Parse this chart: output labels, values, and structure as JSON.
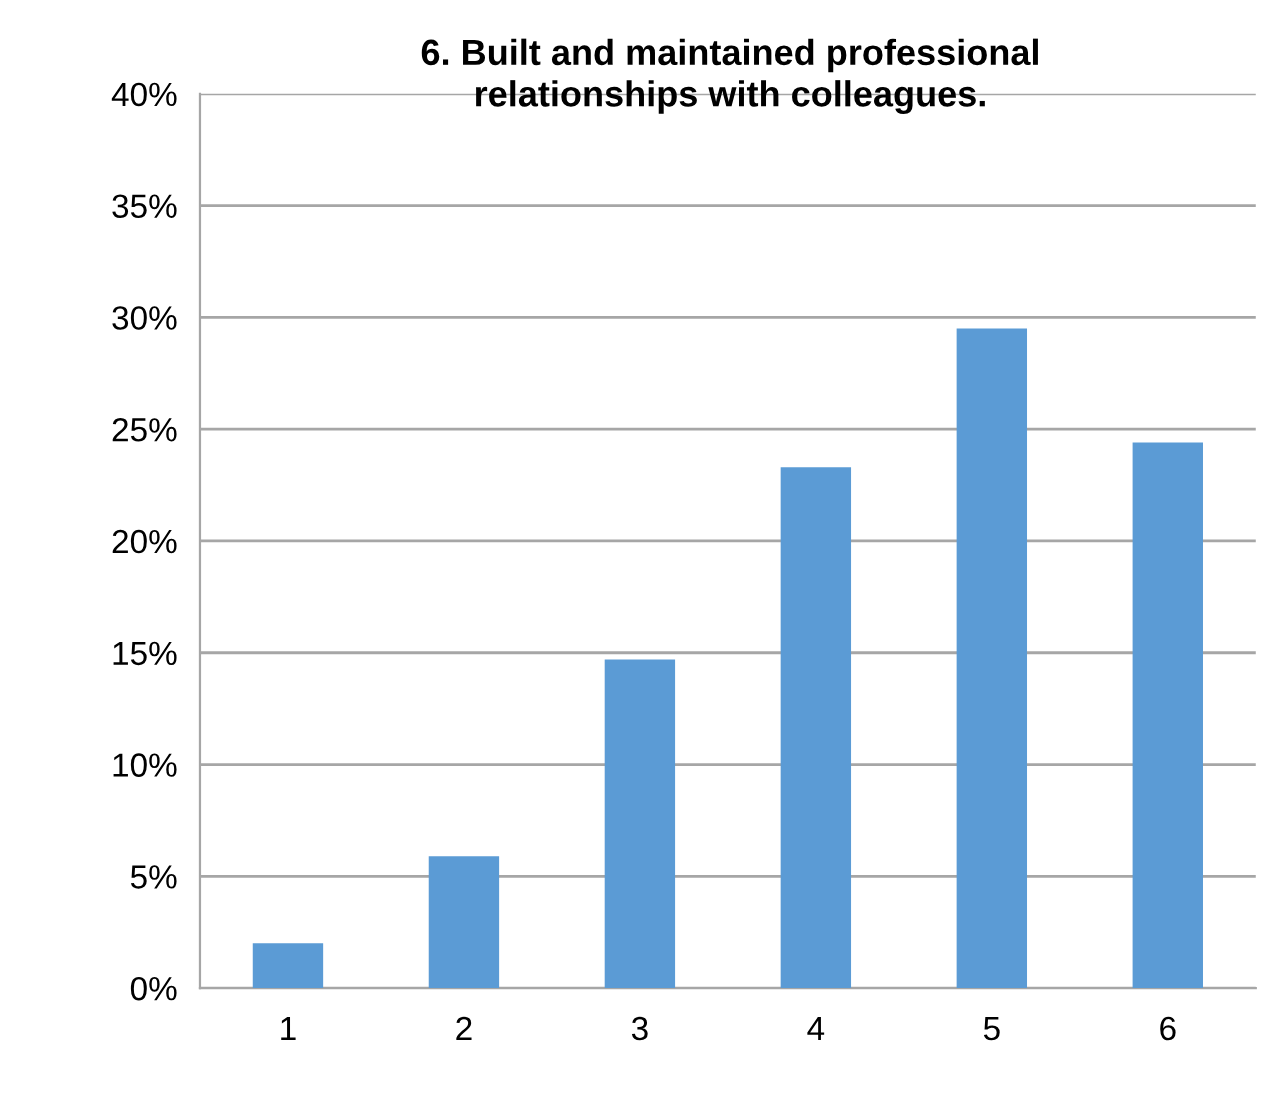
{
  "chart_data": {
    "type": "bar",
    "title": "6. Built and maintained professional\nrelationships with colleagues.",
    "categories": [
      "1",
      "2",
      "3",
      "4",
      "5",
      "6"
    ],
    "series": [
      {
        "color": "#5b9bd5",
        "values": [
          2.0,
          5.9,
          14.7,
          23.3,
          29.5,
          24.4
        ]
      }
    ],
    "ylim": [
      0,
      40
    ],
    "yticks": [
      {
        "value": 0,
        "label": "0%"
      },
      {
        "value": 5,
        "label": "5%"
      },
      {
        "value": 10,
        "label": "10%"
      },
      {
        "value": 15,
        "label": "15%"
      },
      {
        "value": 20,
        "label": "20%"
      },
      {
        "value": 25,
        "label": "25%"
      },
      {
        "value": 30,
        "label": "30%"
      },
      {
        "value": 35,
        "label": "35%"
      },
      {
        "value": 40,
        "label": "40%"
      }
    ],
    "grid": "y"
  }
}
